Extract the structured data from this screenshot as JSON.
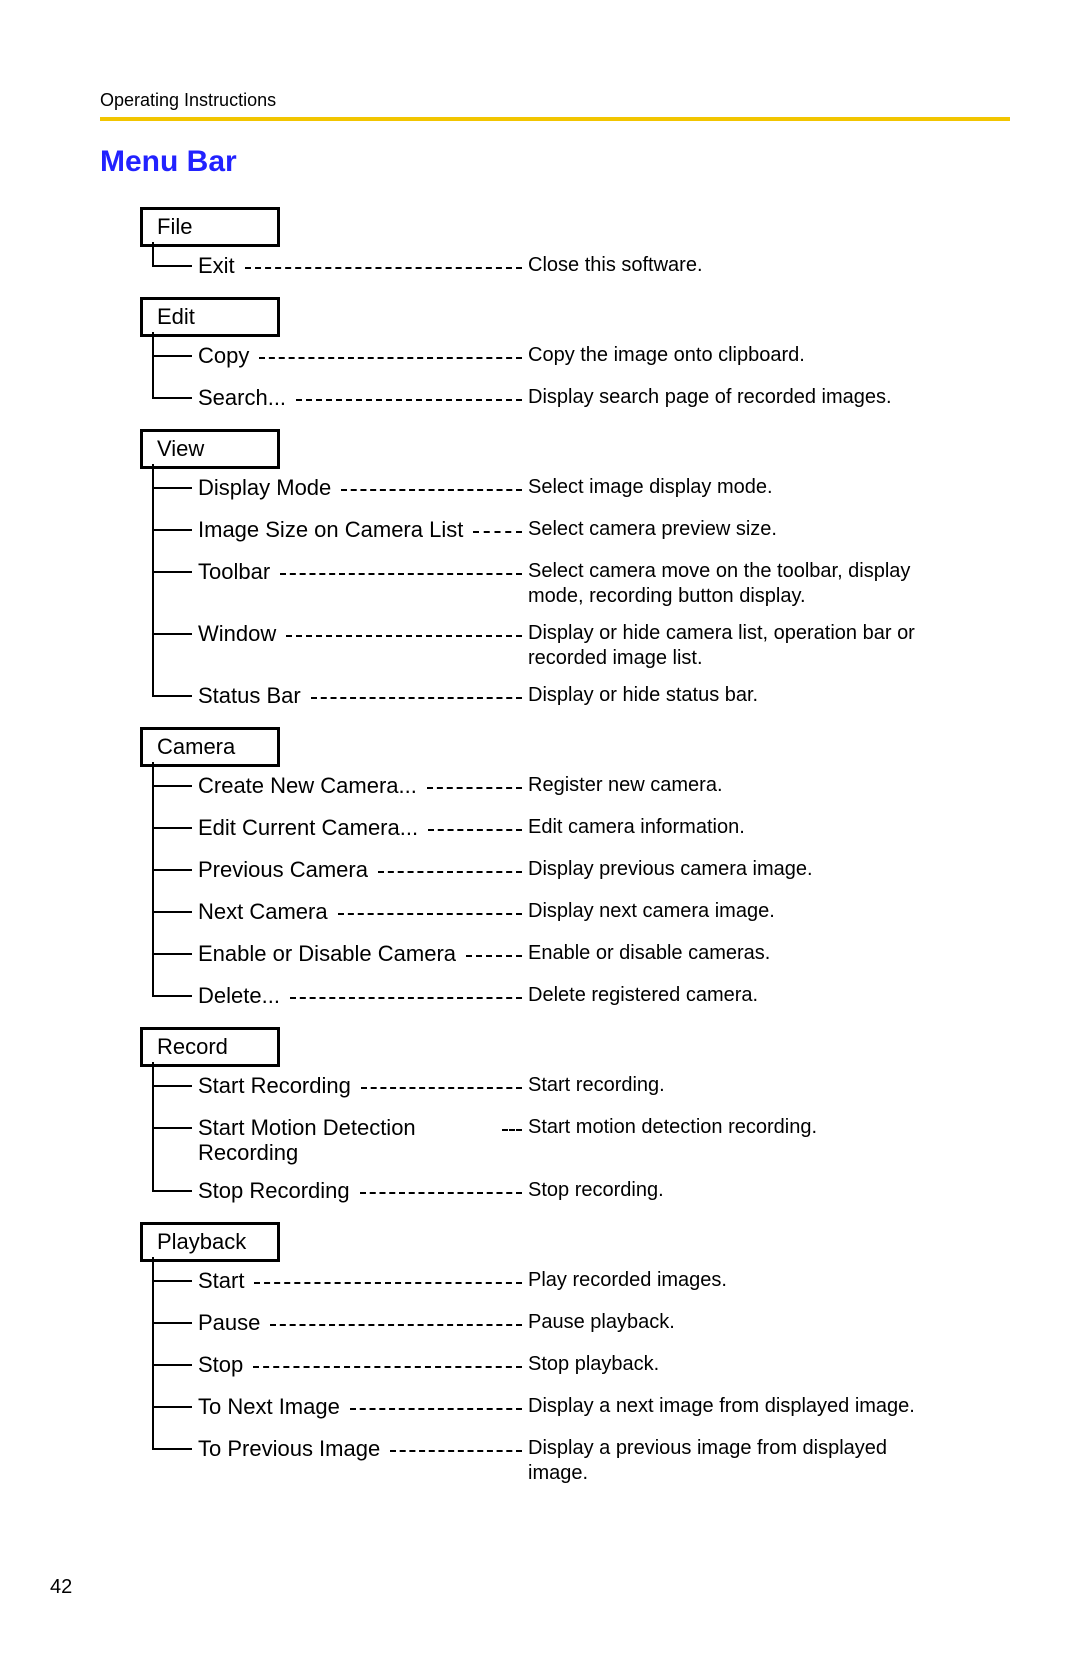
{
  "header": {
    "breadcrumb": "Operating Instructions",
    "title": "Menu Bar",
    "title_color": "#2222ff",
    "rule_color": "#f2c500"
  },
  "page_number": "42",
  "menus": [
    {
      "title": "File",
      "items": [
        {
          "label": "Exit",
          "desc": "Close this software."
        }
      ]
    },
    {
      "title": "Edit",
      "items": [
        {
          "label": "Copy",
          "desc": "Copy the image onto clipboard."
        },
        {
          "label": "Search...",
          "desc": "Display search page of recorded images."
        }
      ]
    },
    {
      "title": "View",
      "items": [
        {
          "label": "Display Mode",
          "desc": "Select image display mode."
        },
        {
          "label": "Image Size on Camera List",
          "desc": "Select camera preview size."
        },
        {
          "label": "Toolbar",
          "desc": "Select camera move on the toolbar, display mode, recording button display."
        },
        {
          "label": "Window",
          "desc": "Display or hide camera list, operation bar or recorded image list."
        },
        {
          "label": "Status Bar",
          "desc": "Display or hide status bar."
        }
      ]
    },
    {
      "title": "Camera",
      "items": [
        {
          "label": "Create New Camera...",
          "desc": "Register new camera."
        },
        {
          "label": "Edit Current Camera...",
          "desc": "Edit camera information."
        },
        {
          "label": "Previous Camera",
          "desc": "Display previous camera image."
        },
        {
          "label": "Next Camera",
          "desc": "Display next camera image."
        },
        {
          "label": "Enable or Disable Camera",
          "desc": "Enable or disable cameras."
        },
        {
          "label": "Delete...",
          "desc": "Delete registered camera."
        }
      ]
    },
    {
      "title": "Record",
      "items": [
        {
          "label": "Start Recording",
          "desc": "Start recording."
        },
        {
          "label": "Start Motion Detection Recording",
          "desc": "Start motion detection recording."
        },
        {
          "label": "Stop Recording",
          "desc": "Stop recording."
        }
      ]
    },
    {
      "title": "Playback",
      "items": [
        {
          "label": "Start",
          "desc": "Play recorded images."
        },
        {
          "label": "Pause",
          "desc": "Pause playback."
        },
        {
          "label": "Stop",
          "desc": "Stop playback."
        },
        {
          "label": "To Next Image",
          "desc": "Display a next image from displayed image."
        },
        {
          "label": "To Previous Image",
          "desc": "Display a previous image from displayed image."
        }
      ]
    }
  ]
}
